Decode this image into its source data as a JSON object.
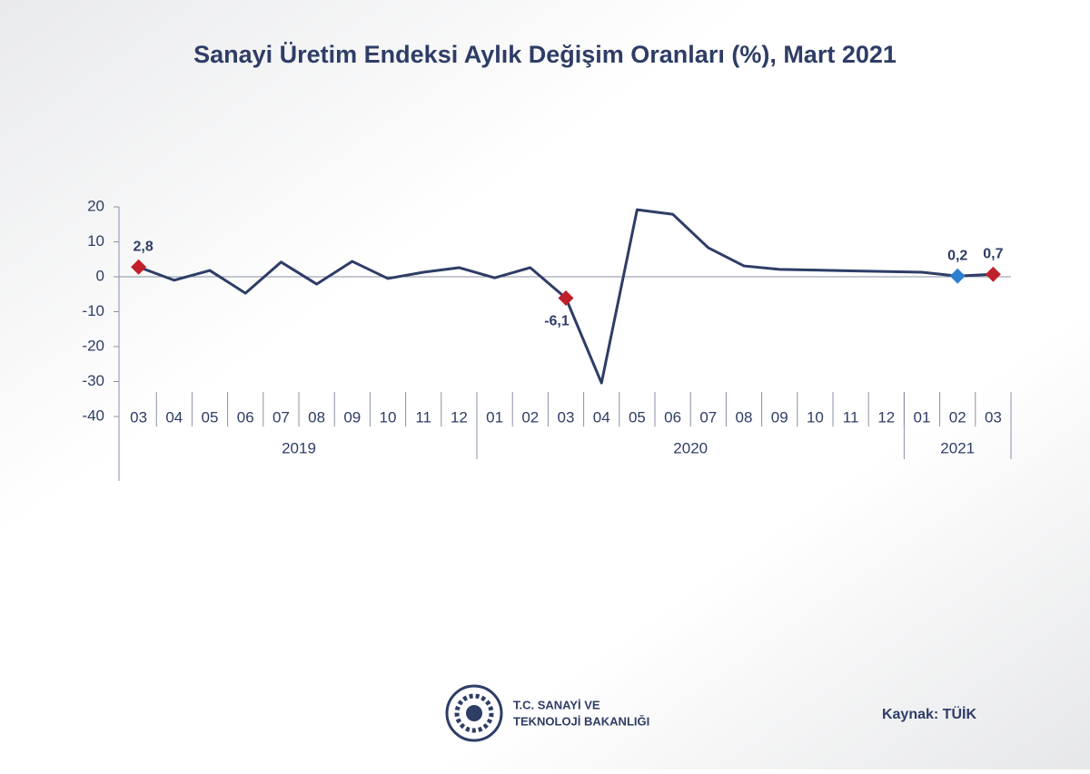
{
  "chart_data": {
    "type": "line",
    "title": "Sanayi Üretim Endeksi Aylık Değişim Oranları (%), Mart 2021",
    "categories": [
      "03",
      "04",
      "05",
      "06",
      "07",
      "08",
      "09",
      "10",
      "11",
      "12",
      "01",
      "02",
      "03",
      "04",
      "05",
      "06",
      "07",
      "08",
      "09",
      "10",
      "11",
      "12",
      "01",
      "02",
      "03"
    ],
    "year_groups": [
      {
        "name": "2019",
        "count": 10
      },
      {
        "name": "2020",
        "count": 12
      },
      {
        "name": "2021",
        "count": 3
      }
    ],
    "series": [
      {
        "color": "#2e3d66",
        "values": [
          2.8,
          -1.0,
          1.8,
          -4.7,
          4.2,
          -2.1,
          4.4,
          -0.5,
          1.3,
          2.6,
          -0.3,
          2.6,
          -6.1,
          -30.4,
          19.2,
          17.9,
          8.3,
          3.1,
          2.1,
          1.9,
          1.7,
          1.5,
          1.3,
          0.2,
          0.7
        ],
        "value_labels": [
          "2,8",
          null,
          null,
          null,
          null,
          null,
          null,
          null,
          null,
          null,
          null,
          null,
          "-6,1",
          null,
          null,
          null,
          null,
          null,
          null,
          null,
          null,
          null,
          null,
          "0,2",
          "0,7"
        ],
        "marker_colors": [
          "#c0202a",
          null,
          null,
          null,
          null,
          null,
          null,
          null,
          null,
          null,
          null,
          null,
          "#c0202a",
          null,
          null,
          null,
          null,
          null,
          null,
          null,
          null,
          null,
          null,
          "#2f7fd0",
          "#c0202a"
        ]
      }
    ],
    "ylim": [
      -40,
      20
    ],
    "yticks": [
      20,
      10,
      0,
      -10,
      -20,
      -30,
      -40
    ],
    "grid": false
  },
  "footer": {
    "ministry_line1": "T.C. SANAYİ VE",
    "ministry_line2": "TEKNOLOJİ BAKANLIĞI",
    "source": "Kaynak: TÜİK"
  }
}
